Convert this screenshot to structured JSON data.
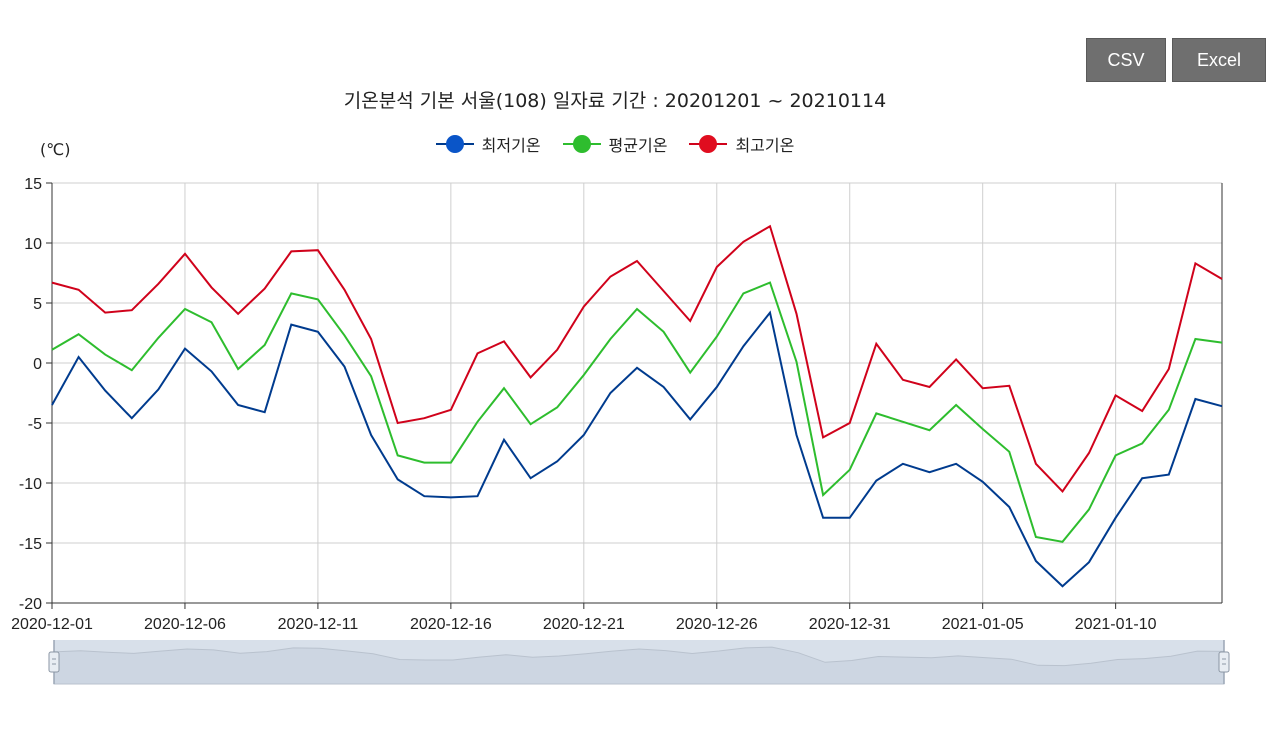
{
  "buttons": {
    "csv": "CSV",
    "excel": "Excel"
  },
  "chart_data": {
    "type": "line",
    "title": "기온분석 기본 서울(108) 일자료 기간 : 20201201 ~ 20210114",
    "ylabel": "(℃)",
    "xlabel": "",
    "ylim": [
      -20,
      15
    ],
    "yticks": [
      15,
      10,
      5,
      0,
      -5,
      -10,
      -15,
      -20
    ],
    "grid": true,
    "legend_position": "top-center",
    "x": [
      "2020-12-01",
      "2020-12-02",
      "2020-12-03",
      "2020-12-04",
      "2020-12-05",
      "2020-12-06",
      "2020-12-07",
      "2020-12-08",
      "2020-12-09",
      "2020-12-10",
      "2020-12-11",
      "2020-12-12",
      "2020-12-13",
      "2020-12-14",
      "2020-12-15",
      "2020-12-16",
      "2020-12-17",
      "2020-12-18",
      "2020-12-19",
      "2020-12-20",
      "2020-12-21",
      "2020-12-22",
      "2020-12-23",
      "2020-12-24",
      "2020-12-25",
      "2020-12-26",
      "2020-12-27",
      "2020-12-28",
      "2020-12-29",
      "2020-12-30",
      "2020-12-31",
      "2021-01-01",
      "2021-01-02",
      "2021-01-03",
      "2021-01-04",
      "2021-01-05",
      "2021-01-06",
      "2021-01-07",
      "2021-01-08",
      "2021-01-09",
      "2021-01-10",
      "2021-01-11",
      "2021-01-12",
      "2021-01-13",
      "2021-01-14"
    ],
    "x_tick_labels": [
      "2020-12-01",
      "2020-12-06",
      "2020-12-11",
      "2020-12-16",
      "2020-12-21",
      "2020-12-26",
      "2020-12-31",
      "2021-01-05",
      "2021-01-10"
    ],
    "series": [
      {
        "name": "최저기온",
        "color": "#003b8e",
        "legend_color": "#0a55c8",
        "values": [
          -3.5,
          0.5,
          -2.3,
          -4.6,
          -2.2,
          1.2,
          -0.7,
          -3.5,
          -4.1,
          3.2,
          2.6,
          -0.3,
          -6.0,
          -9.7,
          -11.1,
          -11.2,
          -11.1,
          -6.4,
          -9.6,
          -8.2,
          -6.0,
          -2.5,
          -0.4,
          -2.0,
          -4.7,
          -2.0,
          1.4,
          4.2,
          -6.0,
          -12.9,
          -12.9,
          -9.8,
          -8.4,
          -9.1,
          -8.4,
          -9.9,
          -12.0,
          -16.5,
          -18.6,
          -16.6,
          -12.9,
          -9.6,
          -9.3,
          -3.0,
          -3.6
        ]
      },
      {
        "name": "평균기온",
        "color": "#2ebd2e",
        "legend_color": "#2ebd2e",
        "values": [
          1.1,
          2.4,
          0.7,
          -0.6,
          2.1,
          4.5,
          3.4,
          -0.5,
          1.5,
          5.8,
          5.3,
          2.3,
          -1.1,
          -7.7,
          -8.3,
          -8.3,
          -4.9,
          -2.1,
          -5.1,
          -3.7,
          -1.0,
          2.0,
          4.5,
          2.6,
          -0.8,
          2.2,
          5.8,
          6.7,
          0.1,
          -11.0,
          -8.9,
          -4.2,
          -4.9,
          -5.6,
          -3.5,
          -5.5,
          -7.4,
          -14.5,
          -14.9,
          -12.2,
          -7.7,
          -6.7,
          -3.9,
          2.0,
          1.7
        ]
      },
      {
        "name": "최고기온",
        "color": "#d0021b",
        "legend_color": "#e00d1f",
        "values": [
          6.7,
          6.1,
          4.2,
          4.4,
          6.6,
          9.1,
          6.3,
          4.1,
          6.2,
          9.3,
          9.4,
          6.1,
          2.0,
          -5.0,
          -4.6,
          -3.9,
          0.8,
          1.8,
          -1.2,
          1.1,
          4.7,
          7.2,
          8.5,
          6.0,
          3.5,
          8.0,
          10.1,
          11.4,
          4.1,
          -6.2,
          -5.0,
          1.6,
          -1.4,
          -2.0,
          0.3,
          -2.1,
          -1.9,
          -8.4,
          -10.7,
          -7.5,
          -2.7,
          -4.0,
          -0.5,
          8.3,
          7.0
        ]
      }
    ]
  }
}
